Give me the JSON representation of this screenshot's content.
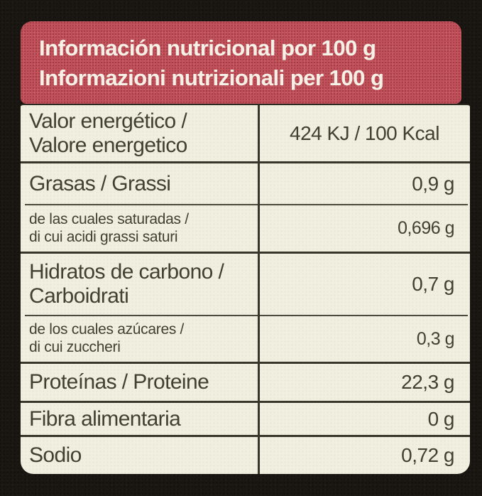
{
  "header": {
    "line1": "Información nutricional por 100 g",
    "line2": "Informazioni nutrizionali per 100 g",
    "bg_color": "#c05059",
    "text_color": "#f6f1e6"
  },
  "table": {
    "bg_color": "#f1efe0",
    "rule_color": "#38352b",
    "text_color": "#43402f",
    "per_quantity": "100 g",
    "rows": [
      {
        "label_line1": "Valor energético /",
        "label_line2": "Valore energetico",
        "value": "424 KJ / 100 Kcal",
        "type": "main"
      },
      {
        "label_line1": "Grasas / Grassi",
        "value": "0,9 g",
        "type": "main"
      },
      {
        "label_line1": "de las cuales saturadas /",
        "label_line2": "di cui acidi grassi saturi",
        "value": "0,696 g",
        "type": "sub"
      },
      {
        "label_line1": "Hidratos de carbono /",
        "label_line2": "Carboidrati",
        "value": "0,7 g",
        "type": "main"
      },
      {
        "label_line1": "de los cuales azúcares /",
        "label_line2": "di cui zuccheri",
        "value": "0,3 g",
        "type": "sub"
      },
      {
        "label_line1": "Proteínas / Proteine",
        "value": "22,3 g",
        "type": "main"
      },
      {
        "label_line1": "Fibra alimentaria",
        "value": "0 g",
        "type": "main"
      },
      {
        "label_line1": "Sodio",
        "value": "0,72 g",
        "type": "main"
      }
    ]
  },
  "background_color": "#1a1611"
}
